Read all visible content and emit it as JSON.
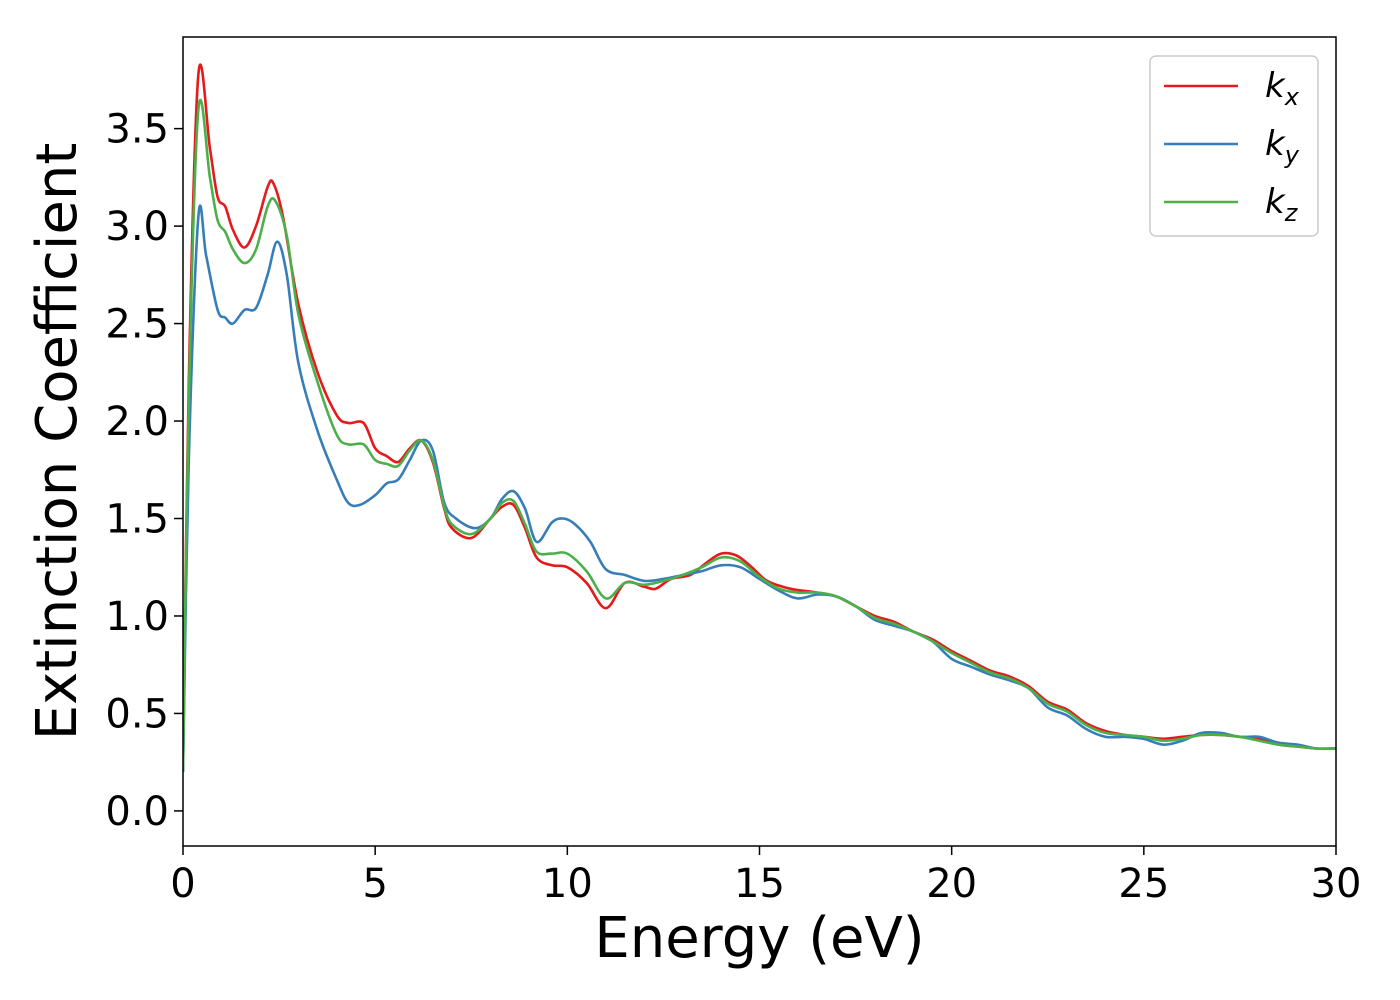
{
  "chart_data": {
    "type": "line",
    "xlabel": "Energy (eV)",
    "ylabel": "Extinction Coefficient",
    "xlim": [
      0,
      30
    ],
    "ylim": [
      -0.18,
      3.97
    ],
    "xticks": [
      0,
      5,
      10,
      15,
      20,
      25,
      30
    ],
    "xtick_labels": [
      "0",
      "5",
      "10",
      "15",
      "20",
      "25",
      "30"
    ],
    "yticks": [
      0.0,
      0.5,
      1.0,
      1.5,
      2.0,
      2.5,
      3.0,
      3.5
    ],
    "ytick_labels": [
      "0.0",
      "0.5",
      "1.0",
      "1.5",
      "2.0",
      "2.5",
      "3.0",
      "3.5"
    ],
    "grid": false,
    "legend_position": "top-right",
    "series": [
      {
        "name": "k",
        "subscript": "x",
        "color": "#e41a1c",
        "points": [
          [
            0,
            0.2
          ],
          [
            0.15,
            2.2
          ],
          [
            0.4,
            3.78
          ],
          [
            0.7,
            3.4
          ],
          [
            0.9,
            3.15
          ],
          [
            1.1,
            3.1
          ],
          [
            1.3,
            2.98
          ],
          [
            1.6,
            2.89
          ],
          [
            1.9,
            3.0
          ],
          [
            2.2,
            3.2
          ],
          [
            2.35,
            3.22
          ],
          [
            2.6,
            3.05
          ],
          [
            3.0,
            2.6
          ],
          [
            3.5,
            2.25
          ],
          [
            4.0,
            2.03
          ],
          [
            4.3,
            1.99
          ],
          [
            4.7,
            1.99
          ],
          [
            5.0,
            1.86
          ],
          [
            5.3,
            1.82
          ],
          [
            5.6,
            1.79
          ],
          [
            5.9,
            1.86
          ],
          [
            6.2,
            1.9
          ],
          [
            6.5,
            1.79
          ],
          [
            6.8,
            1.55
          ],
          [
            7.0,
            1.45
          ],
          [
            7.5,
            1.4
          ],
          [
            8.0,
            1.5
          ],
          [
            8.3,
            1.56
          ],
          [
            8.6,
            1.57
          ],
          [
            8.9,
            1.45
          ],
          [
            9.2,
            1.3
          ],
          [
            9.6,
            1.26
          ],
          [
            10.0,
            1.25
          ],
          [
            10.5,
            1.17
          ],
          [
            11.0,
            1.04
          ],
          [
            11.5,
            1.17
          ],
          [
            12.0,
            1.15
          ],
          [
            12.3,
            1.14
          ],
          [
            12.7,
            1.19
          ],
          [
            13.2,
            1.21
          ],
          [
            13.6,
            1.27
          ],
          [
            14.0,
            1.32
          ],
          [
            14.4,
            1.31
          ],
          [
            14.8,
            1.25
          ],
          [
            15.2,
            1.18
          ],
          [
            15.8,
            1.14
          ],
          [
            16.5,
            1.12
          ],
          [
            17.0,
            1.1
          ],
          [
            17.5,
            1.05
          ],
          [
            18.0,
            1.0
          ],
          [
            18.5,
            0.97
          ],
          [
            19.0,
            0.92
          ],
          [
            19.5,
            0.88
          ],
          [
            20.0,
            0.82
          ],
          [
            20.5,
            0.77
          ],
          [
            21.0,
            0.72
          ],
          [
            21.5,
            0.69
          ],
          [
            22.0,
            0.64
          ],
          [
            22.5,
            0.56
          ],
          [
            23.0,
            0.52
          ],
          [
            23.5,
            0.45
          ],
          [
            24.0,
            0.41
          ],
          [
            24.5,
            0.39
          ],
          [
            25.0,
            0.38
          ],
          [
            25.5,
            0.37
          ],
          [
            26.0,
            0.38
          ],
          [
            26.5,
            0.39
          ],
          [
            27.0,
            0.39
          ],
          [
            27.5,
            0.38
          ],
          [
            28.0,
            0.37
          ],
          [
            28.5,
            0.34
          ],
          [
            29.0,
            0.33
          ],
          [
            29.5,
            0.32
          ],
          [
            30.0,
            0.32
          ]
        ]
      },
      {
        "name": "k",
        "subscript": "y",
        "color": "#377eb8",
        "points": [
          [
            0,
            0.2
          ],
          [
            0.15,
            1.8
          ],
          [
            0.4,
            3.05
          ],
          [
            0.6,
            2.85
          ],
          [
            0.9,
            2.57
          ],
          [
            1.1,
            2.53
          ],
          [
            1.3,
            2.5
          ],
          [
            1.6,
            2.57
          ],
          [
            1.9,
            2.58
          ],
          [
            2.2,
            2.75
          ],
          [
            2.45,
            2.92
          ],
          [
            2.7,
            2.75
          ],
          [
            3.0,
            2.3
          ],
          [
            3.5,
            1.95
          ],
          [
            4.0,
            1.7
          ],
          [
            4.3,
            1.58
          ],
          [
            4.6,
            1.57
          ],
          [
            5.0,
            1.62
          ],
          [
            5.3,
            1.68
          ],
          [
            5.6,
            1.7
          ],
          [
            5.9,
            1.8
          ],
          [
            6.2,
            1.9
          ],
          [
            6.5,
            1.85
          ],
          [
            6.8,
            1.58
          ],
          [
            7.1,
            1.5
          ],
          [
            7.6,
            1.45
          ],
          [
            8.0,
            1.5
          ],
          [
            8.3,
            1.6
          ],
          [
            8.6,
            1.64
          ],
          [
            8.9,
            1.55
          ],
          [
            9.2,
            1.38
          ],
          [
            9.6,
            1.48
          ],
          [
            9.9,
            1.5
          ],
          [
            10.2,
            1.47
          ],
          [
            10.6,
            1.38
          ],
          [
            11.0,
            1.24
          ],
          [
            11.5,
            1.21
          ],
          [
            12.0,
            1.18
          ],
          [
            12.5,
            1.19
          ],
          [
            13.0,
            1.21
          ],
          [
            13.5,
            1.23
          ],
          [
            14.0,
            1.26
          ],
          [
            14.5,
            1.25
          ],
          [
            15.0,
            1.19
          ],
          [
            15.5,
            1.13
          ],
          [
            16.0,
            1.09
          ],
          [
            16.5,
            1.11
          ],
          [
            17.0,
            1.1
          ],
          [
            17.5,
            1.05
          ],
          [
            18.0,
            0.98
          ],
          [
            18.5,
            0.95
          ],
          [
            19.0,
            0.92
          ],
          [
            19.5,
            0.87
          ],
          [
            20.0,
            0.78
          ],
          [
            20.5,
            0.74
          ],
          [
            21.0,
            0.7
          ],
          [
            21.5,
            0.67
          ],
          [
            22.0,
            0.63
          ],
          [
            22.5,
            0.53
          ],
          [
            23.0,
            0.49
          ],
          [
            23.5,
            0.42
          ],
          [
            24.0,
            0.38
          ],
          [
            24.5,
            0.38
          ],
          [
            25.0,
            0.37
          ],
          [
            25.5,
            0.34
          ],
          [
            26.0,
            0.36
          ],
          [
            26.5,
            0.4
          ],
          [
            27.0,
            0.4
          ],
          [
            27.5,
            0.38
          ],
          [
            28.0,
            0.38
          ],
          [
            28.5,
            0.35
          ],
          [
            29.0,
            0.34
          ],
          [
            29.5,
            0.32
          ],
          [
            30.0,
            0.32
          ]
        ]
      },
      {
        "name": "k",
        "subscript": "z",
        "color": "#4daf4a",
        "points": [
          [
            0,
            0.2
          ],
          [
            0.15,
            2.1
          ],
          [
            0.4,
            3.6
          ],
          [
            0.7,
            3.25
          ],
          [
            0.9,
            3.03
          ],
          [
            1.1,
            2.97
          ],
          [
            1.3,
            2.88
          ],
          [
            1.6,
            2.81
          ],
          [
            1.9,
            2.88
          ],
          [
            2.2,
            3.1
          ],
          [
            2.4,
            3.13
          ],
          [
            2.7,
            2.95
          ],
          [
            3.0,
            2.55
          ],
          [
            3.5,
            2.2
          ],
          [
            4.0,
            1.93
          ],
          [
            4.3,
            1.88
          ],
          [
            4.7,
            1.88
          ],
          [
            5.0,
            1.8
          ],
          [
            5.3,
            1.78
          ],
          [
            5.6,
            1.77
          ],
          [
            5.9,
            1.85
          ],
          [
            6.2,
            1.9
          ],
          [
            6.5,
            1.8
          ],
          [
            6.8,
            1.56
          ],
          [
            7.0,
            1.47
          ],
          [
            7.5,
            1.42
          ],
          [
            8.0,
            1.5
          ],
          [
            8.3,
            1.58
          ],
          [
            8.6,
            1.59
          ],
          [
            8.9,
            1.47
          ],
          [
            9.2,
            1.33
          ],
          [
            9.6,
            1.32
          ],
          [
            10.0,
            1.32
          ],
          [
            10.5,
            1.23
          ],
          [
            11.0,
            1.09
          ],
          [
            11.5,
            1.17
          ],
          [
            12.0,
            1.16
          ],
          [
            12.5,
            1.18
          ],
          [
            13.0,
            1.21
          ],
          [
            13.5,
            1.25
          ],
          [
            14.0,
            1.3
          ],
          [
            14.5,
            1.28
          ],
          [
            15.0,
            1.2
          ],
          [
            15.5,
            1.14
          ],
          [
            16.0,
            1.12
          ],
          [
            16.5,
            1.12
          ],
          [
            17.0,
            1.1
          ],
          [
            17.5,
            1.05
          ],
          [
            18.0,
            0.99
          ],
          [
            18.5,
            0.96
          ],
          [
            19.0,
            0.92
          ],
          [
            19.5,
            0.87
          ],
          [
            20.0,
            0.81
          ],
          [
            20.5,
            0.76
          ],
          [
            21.0,
            0.71
          ],
          [
            21.5,
            0.68
          ],
          [
            22.0,
            0.63
          ],
          [
            22.5,
            0.55
          ],
          [
            23.0,
            0.51
          ],
          [
            23.5,
            0.44
          ],
          [
            24.0,
            0.4
          ],
          [
            24.5,
            0.39
          ],
          [
            25.0,
            0.38
          ],
          [
            25.5,
            0.36
          ],
          [
            26.0,
            0.37
          ],
          [
            26.5,
            0.39
          ],
          [
            27.0,
            0.39
          ],
          [
            27.5,
            0.38
          ],
          [
            28.0,
            0.36
          ],
          [
            28.5,
            0.34
          ],
          [
            29.0,
            0.33
          ],
          [
            29.5,
            0.32
          ],
          [
            30.0,
            0.32
          ]
        ]
      }
    ]
  }
}
